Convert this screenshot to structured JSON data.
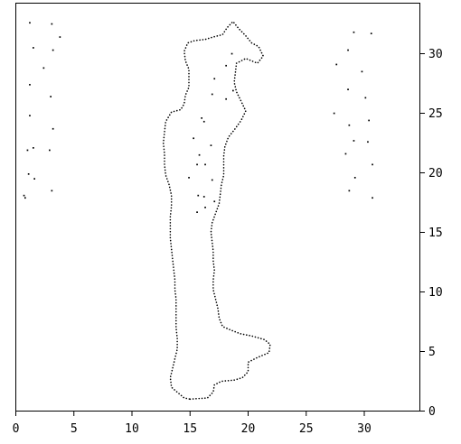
{
  "chart_data": {
    "type": "scatter",
    "title": "",
    "xlabel": "",
    "ylabel": "",
    "xlim": [
      0,
      34.5
    ],
    "ylim": [
      0,
      34
    ],
    "x_ticks": [
      0,
      5,
      10,
      15,
      20,
      25,
      30
    ],
    "y_ticks": [
      0,
      5,
      10,
      15,
      20,
      25,
      30
    ],
    "y_axis_side": "right",
    "grid": false,
    "legend": "none",
    "series": [
      {
        "style": "dotted-outline",
        "points": [
          [
            15.0,
            1.0
          ],
          [
            16.5,
            1.1
          ],
          [
            17.0,
            1.6
          ],
          [
            17.1,
            2.2
          ],
          [
            17.7,
            2.5
          ],
          [
            18.8,
            2.6
          ],
          [
            19.5,
            2.8
          ],
          [
            20.0,
            3.3
          ],
          [
            20.0,
            4.1
          ],
          [
            20.8,
            4.5
          ],
          [
            21.8,
            4.9
          ],
          [
            21.9,
            5.6
          ],
          [
            21.4,
            6.0
          ],
          [
            20.3,
            6.3
          ],
          [
            19.3,
            6.5
          ],
          [
            18.5,
            6.8
          ],
          [
            17.8,
            7.1
          ],
          [
            17.5,
            7.8
          ],
          [
            17.4,
            8.6
          ],
          [
            17.2,
            9.4
          ],
          [
            17.0,
            10.2
          ],
          [
            17.0,
            11.0
          ],
          [
            17.1,
            11.8
          ],
          [
            17.0,
            12.6
          ],
          [
            17.0,
            13.4
          ],
          [
            16.9,
            14.2
          ],
          [
            16.8,
            15.0
          ],
          [
            16.9,
            15.8
          ],
          [
            17.2,
            16.6
          ],
          [
            17.5,
            17.4
          ],
          [
            17.6,
            18.2
          ],
          [
            17.7,
            19.0
          ],
          [
            17.9,
            19.8
          ],
          [
            17.9,
            20.6
          ],
          [
            17.9,
            21.4
          ],
          [
            18.0,
            22.2
          ],
          [
            18.3,
            23.0
          ],
          [
            18.8,
            23.6
          ],
          [
            19.4,
            24.4
          ],
          [
            19.8,
            25.2
          ],
          [
            19.4,
            26.0
          ],
          [
            19.0,
            26.8
          ],
          [
            18.8,
            27.6
          ],
          [
            18.9,
            28.4
          ],
          [
            19.0,
            29.2
          ],
          [
            19.8,
            29.6
          ],
          [
            20.8,
            29.2
          ],
          [
            21.3,
            29.8
          ],
          [
            20.9,
            30.6
          ],
          [
            20.3,
            30.9
          ],
          [
            19.8,
            31.5
          ],
          [
            19.2,
            32.1
          ],
          [
            18.7,
            32.7
          ],
          [
            18.2,
            32.2
          ],
          [
            17.8,
            31.6
          ],
          [
            17.0,
            31.4
          ],
          [
            16.3,
            31.2
          ],
          [
            15.4,
            31.1
          ],
          [
            14.8,
            30.9
          ],
          [
            14.5,
            30.2
          ],
          [
            14.6,
            29.4
          ],
          [
            14.9,
            28.7
          ],
          [
            14.9,
            28.0
          ],
          [
            14.9,
            27.2
          ],
          [
            14.6,
            26.5
          ],
          [
            14.5,
            25.8
          ],
          [
            14.2,
            25.3
          ],
          [
            13.4,
            25.1
          ],
          [
            12.9,
            24.3
          ],
          [
            12.8,
            23.4
          ],
          [
            12.7,
            22.5
          ],
          [
            12.8,
            21.6
          ],
          [
            12.8,
            20.7
          ],
          [
            12.9,
            19.8
          ],
          [
            13.2,
            19.0
          ],
          [
            13.4,
            18.1
          ],
          [
            13.4,
            17.2
          ],
          [
            13.3,
            16.3
          ],
          [
            13.3,
            15.4
          ],
          [
            13.3,
            14.5
          ],
          [
            13.4,
            13.6
          ],
          [
            13.5,
            12.7
          ],
          [
            13.6,
            11.8
          ],
          [
            13.7,
            11.0
          ],
          [
            13.7,
            10.2
          ],
          [
            13.8,
            9.4
          ],
          [
            13.8,
            8.6
          ],
          [
            13.8,
            7.8
          ],
          [
            13.8,
            7.0
          ],
          [
            13.9,
            6.1
          ],
          [
            13.9,
            5.2
          ],
          [
            13.7,
            4.4
          ],
          [
            13.5,
            3.6
          ],
          [
            13.3,
            2.8
          ],
          [
            13.4,
            2.0
          ],
          [
            14.0,
            1.5
          ],
          [
            14.5,
            1.1
          ]
        ]
      },
      {
        "style": "points",
        "points": [
          [
            1.2,
            32.6
          ],
          [
            3.1,
            32.5
          ],
          [
            3.8,
            31.4
          ],
          [
            1.5,
            30.5
          ],
          [
            3.2,
            30.3
          ],
          [
            2.4,
            28.8
          ],
          [
            1.2,
            27.4
          ],
          [
            3.0,
            26.4
          ],
          [
            1.2,
            24.8
          ],
          [
            3.2,
            23.7
          ],
          [
            1.0,
            21.9
          ],
          [
            1.5,
            22.1
          ],
          [
            2.9,
            21.9
          ],
          [
            1.1,
            19.9
          ],
          [
            1.6,
            19.5
          ],
          [
            0.7,
            18.1
          ],
          [
            0.8,
            17.9
          ],
          [
            3.1,
            18.5
          ],
          [
            29.1,
            31.8
          ],
          [
            30.6,
            31.7
          ],
          [
            28.6,
            30.3
          ],
          [
            27.6,
            29.1
          ],
          [
            29.8,
            28.5
          ],
          [
            28.6,
            27.0
          ],
          [
            30.1,
            26.3
          ],
          [
            27.4,
            25.0
          ],
          [
            30.4,
            24.4
          ],
          [
            28.7,
            24.0
          ],
          [
            29.1,
            22.7
          ],
          [
            30.3,
            22.6
          ],
          [
            28.4,
            21.6
          ],
          [
            30.7,
            20.7
          ],
          [
            29.2,
            19.6
          ],
          [
            28.7,
            18.5
          ],
          [
            30.7,
            17.9
          ],
          [
            18.6,
            30.0
          ],
          [
            18.1,
            29.0
          ],
          [
            17.1,
            27.9
          ],
          [
            16.9,
            26.6
          ],
          [
            18.1,
            26.2
          ],
          [
            18.7,
            26.9
          ],
          [
            16.0,
            24.6
          ],
          [
            16.2,
            24.3
          ],
          [
            15.3,
            22.9
          ],
          [
            16.8,
            22.3
          ],
          [
            15.8,
            21.5
          ],
          [
            15.6,
            20.7
          ],
          [
            16.3,
            20.7
          ],
          [
            14.9,
            19.6
          ],
          [
            16.9,
            19.4
          ],
          [
            15.7,
            18.1
          ],
          [
            16.2,
            18.0
          ],
          [
            17.1,
            17.6
          ],
          [
            16.3,
            17.1
          ],
          [
            15.6,
            16.7
          ]
        ]
      }
    ]
  }
}
